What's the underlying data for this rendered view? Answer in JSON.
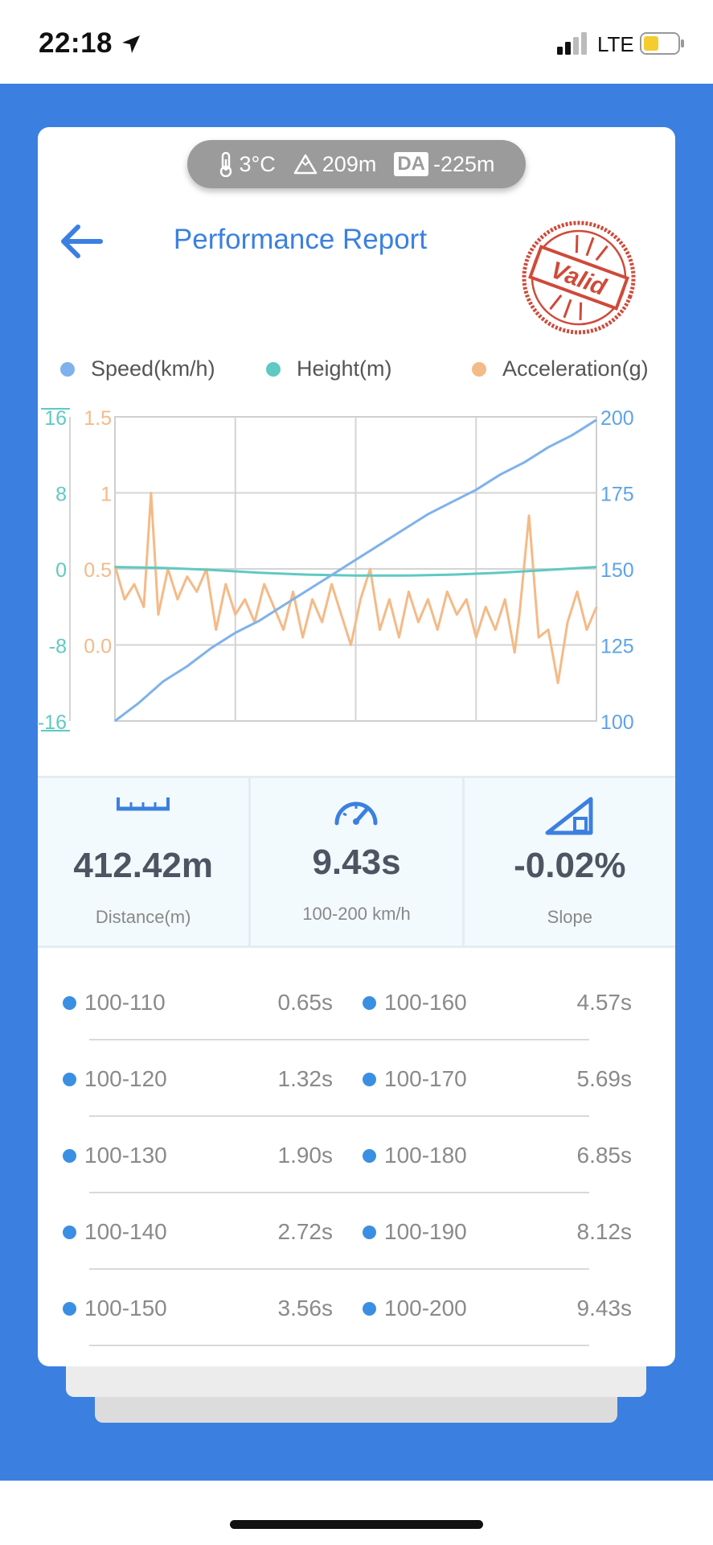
{
  "status_bar": {
    "time": "22:18",
    "network": "LTE"
  },
  "weather": {
    "temperature": "3°C",
    "altitude": "209m",
    "da_label": "DA",
    "density_altitude": "-225m"
  },
  "header": {
    "title": "Performance Report",
    "stamp_text": "Valid"
  },
  "colors": {
    "accent": "#3b80e0",
    "speed": "#7fb2ec",
    "height": "#5fc9c3",
    "acceleration": "#f4ba87"
  },
  "legend": [
    {
      "label": "Speed(km/h)",
      "color": "#7fb2ec"
    },
    {
      "label": "Height(m)",
      "color": "#5fc9c3"
    },
    {
      "label": "Acceleration(g)",
      "color": "#f4ba87"
    }
  ],
  "chart_data": {
    "type": "line",
    "height_axis": {
      "ticks": [
        "16",
        "8",
        "0",
        "-8",
        "-16"
      ],
      "range": [
        -16,
        16
      ]
    },
    "accel_axis": {
      "ticks": [
        "1.5",
        "1",
        "0.5",
        "0.0"
      ],
      "range": [
        -0.5,
        1.5
      ]
    },
    "speed_axis": {
      "ticks": [
        "200",
        "175",
        "150",
        "125",
        "100"
      ],
      "range": [
        100,
        200
      ]
    },
    "grid": true,
    "legend_position": "top",
    "series": [
      {
        "name": "Speed(km/h)",
        "axis": "right",
        "x": [
          0,
          0.05,
          0.1,
          0.15,
          0.2,
          0.25,
          0.3,
          0.35,
          0.4,
          0.45,
          0.5,
          0.55,
          0.6,
          0.65,
          0.7,
          0.75,
          0.8,
          0.85,
          0.9,
          0.95,
          1.0
        ],
        "values": [
          100,
          106,
          113,
          118,
          124,
          129,
          133,
          138,
          143,
          148,
          153,
          158,
          163,
          168,
          172,
          176,
          181,
          185,
          190,
          194,
          199
        ]
      },
      {
        "name": "Height(m)",
        "axis": "left",
        "x": [
          0,
          0.1,
          0.2,
          0.3,
          0.4,
          0.5,
          0.6,
          0.7,
          0.8,
          0.9,
          1.0
        ],
        "values": [
          0.2,
          0.1,
          -0.1,
          -0.4,
          -0.6,
          -0.7,
          -0.7,
          -0.6,
          -0.4,
          -0.1,
          0.2
        ]
      },
      {
        "name": "Acceleration(g)",
        "axis": "middle",
        "x": [
          0,
          0.02,
          0.04,
          0.06,
          0.075,
          0.09,
          0.11,
          0.13,
          0.15,
          0.17,
          0.19,
          0.21,
          0.23,
          0.25,
          0.27,
          0.29,
          0.31,
          0.33,
          0.35,
          0.37,
          0.39,
          0.41,
          0.43,
          0.45,
          0.47,
          0.49,
          0.51,
          0.53,
          0.55,
          0.57,
          0.59,
          0.61,
          0.63,
          0.65,
          0.67,
          0.69,
          0.71,
          0.73,
          0.75,
          0.77,
          0.79,
          0.81,
          0.83,
          0.84,
          0.86,
          0.88,
          0.9,
          0.92,
          0.94,
          0.96,
          0.98,
          1.0
        ],
        "values": [
          0.52,
          0.3,
          0.4,
          0.25,
          1.0,
          0.2,
          0.5,
          0.3,
          0.45,
          0.35,
          0.5,
          0.1,
          0.4,
          0.2,
          0.3,
          0.15,
          0.4,
          0.25,
          0.1,
          0.35,
          0.05,
          0.3,
          0.15,
          0.4,
          0.2,
          0.0,
          0.3,
          0.5,
          0.1,
          0.3,
          0.05,
          0.35,
          0.15,
          0.3,
          0.1,
          0.35,
          0.2,
          0.3,
          0.05,
          0.25,
          0.1,
          0.3,
          -0.05,
          0.2,
          0.85,
          0.05,
          0.1,
          -0.25,
          0.15,
          0.35,
          0.1,
          0.25
        ]
      }
    ]
  },
  "stats": [
    {
      "icon": "ruler-icon",
      "value": "412.42m",
      "label": "Distance(m)"
    },
    {
      "icon": "speedometer-icon",
      "value": "9.43s",
      "label": "100-200 km/h"
    },
    {
      "icon": "slope-icon",
      "value": "-0.02%",
      "label": "Slope"
    }
  ],
  "splits": [
    {
      "left_label": "100-110",
      "left_time": "0.65s",
      "right_label": "100-160",
      "right_time": "4.57s"
    },
    {
      "left_label": "100-120",
      "left_time": "1.32s",
      "right_label": "100-170",
      "right_time": "5.69s"
    },
    {
      "left_label": "100-130",
      "left_time": "1.90s",
      "right_label": "100-180",
      "right_time": "6.85s"
    },
    {
      "left_label": "100-140",
      "left_time": "2.72s",
      "right_label": "100-190",
      "right_time": "8.12s"
    },
    {
      "left_label": "100-150",
      "left_time": "3.56s",
      "right_label": "100-200",
      "right_time": "9.43s"
    }
  ]
}
